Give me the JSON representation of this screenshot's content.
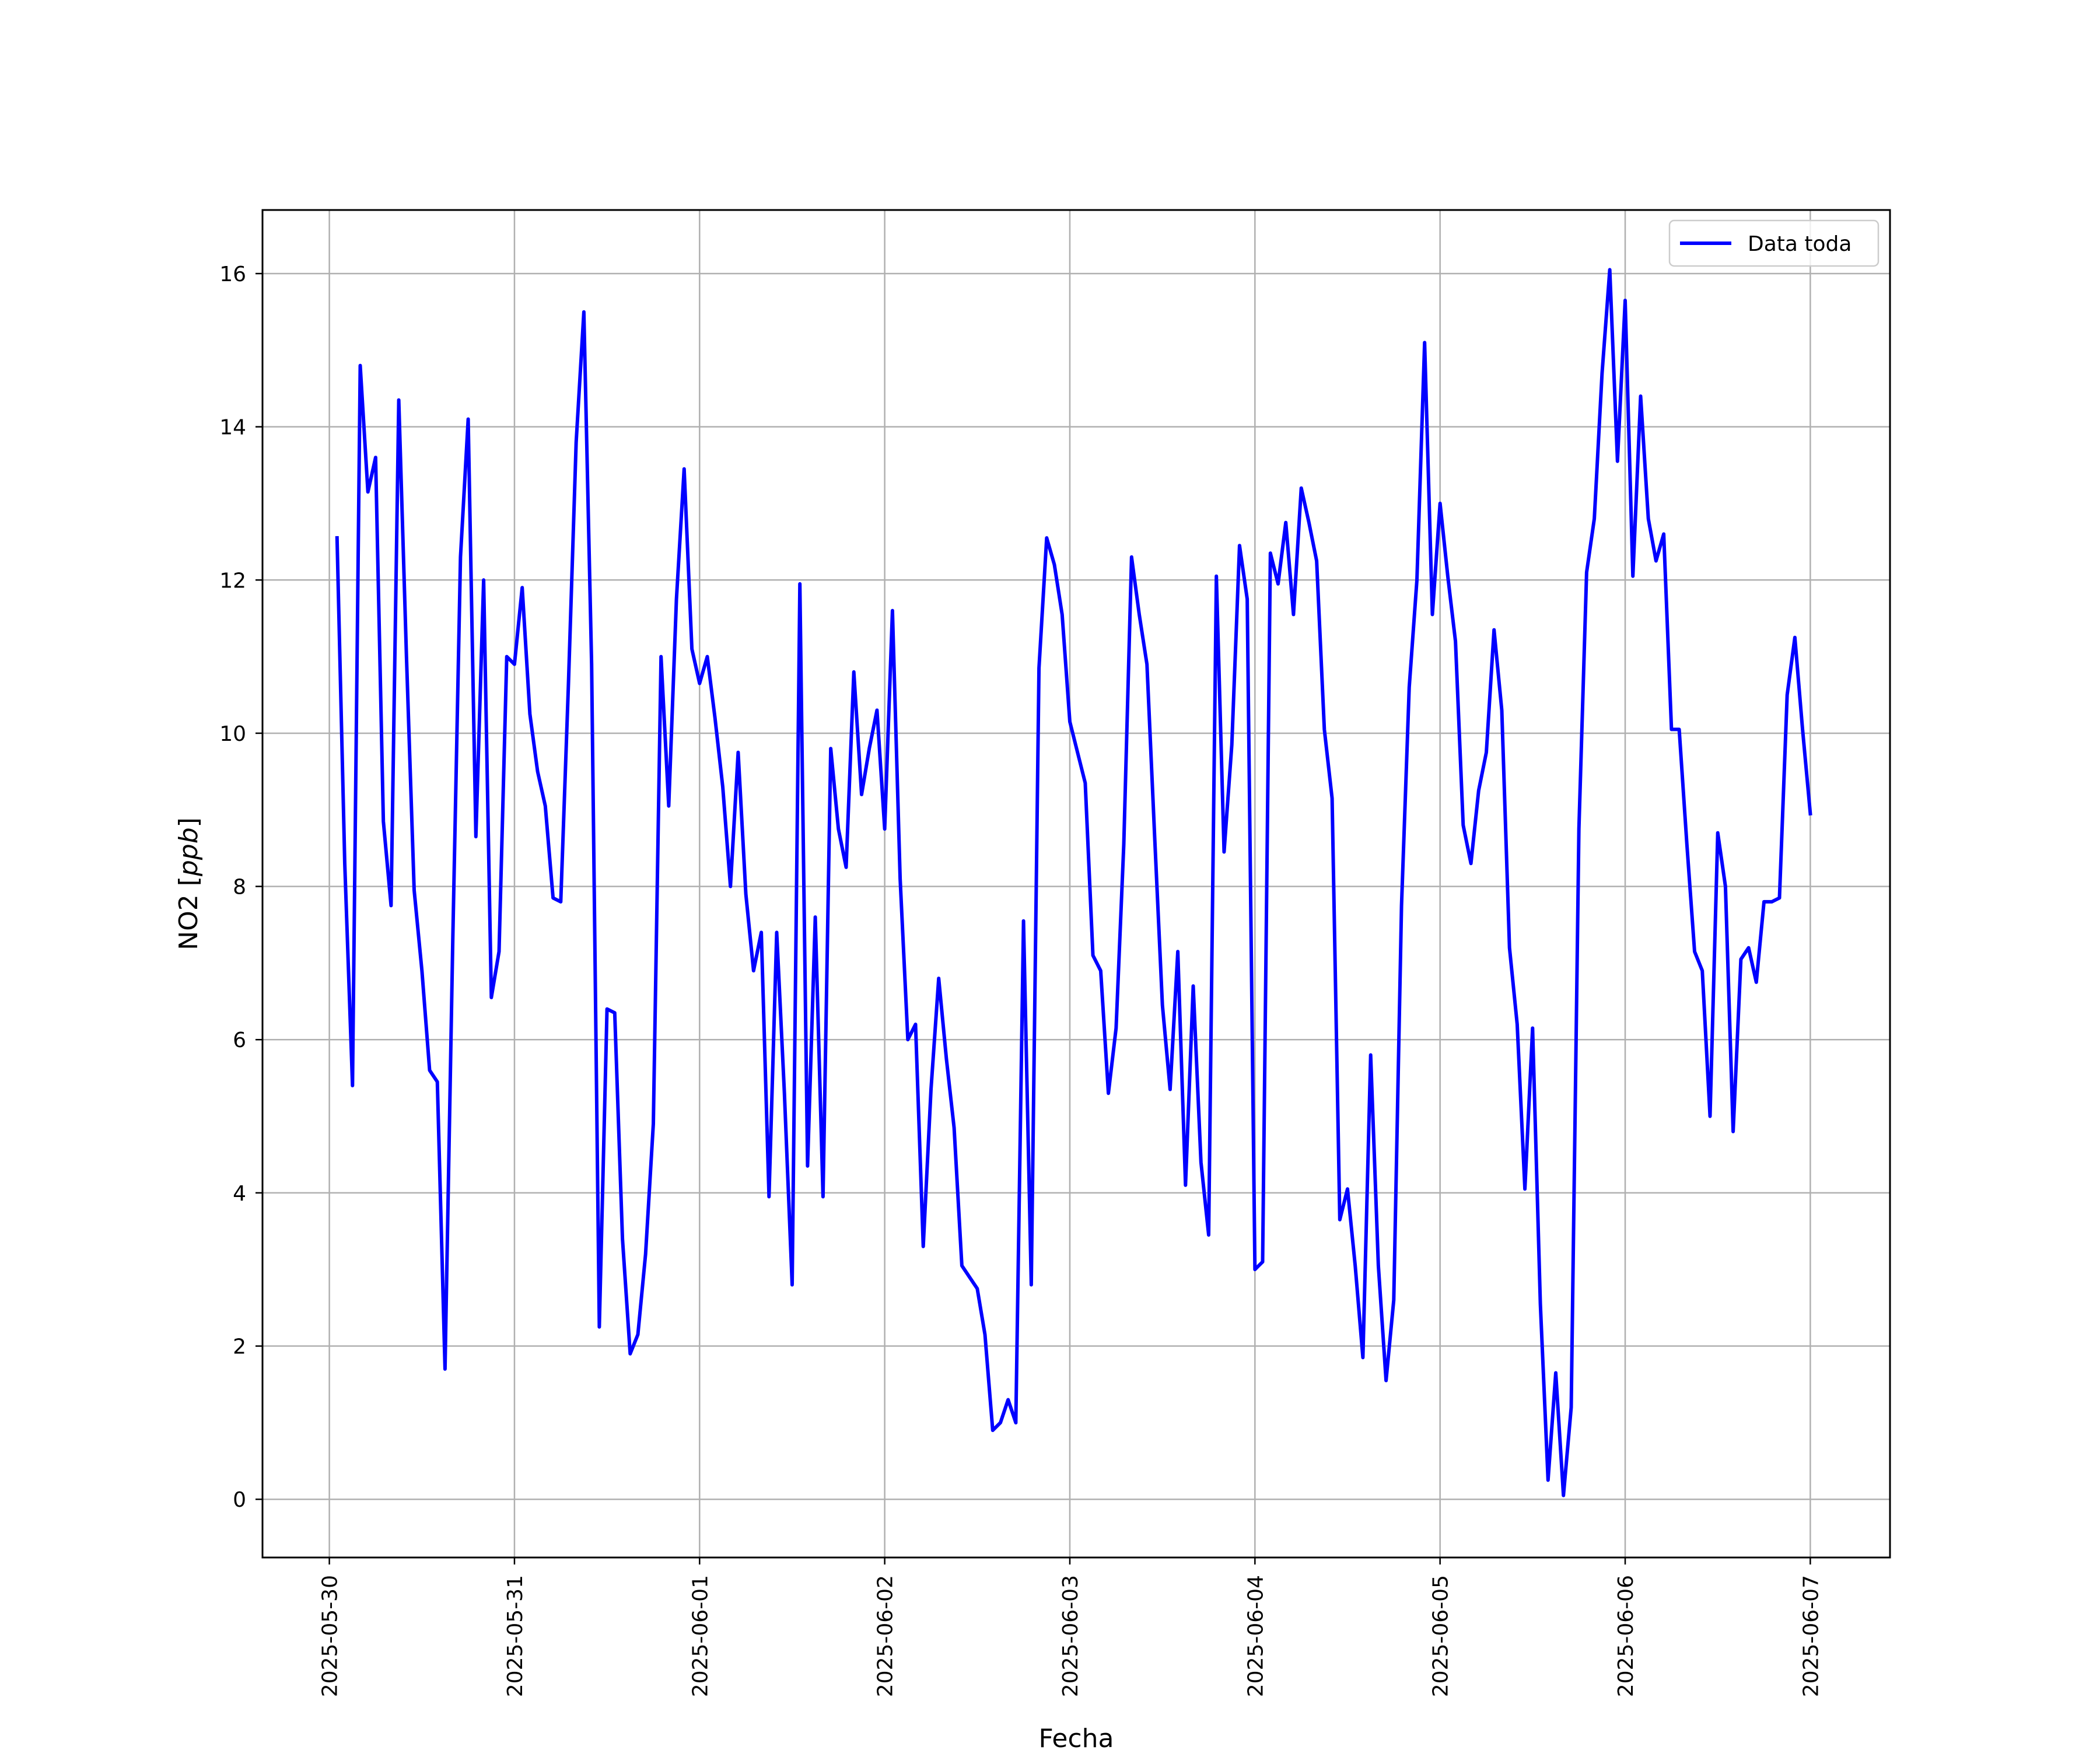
{
  "chart_data": {
    "type": "line",
    "xlabel": "Fecha",
    "ylabel_prefix": "NO2 [",
    "ylabel_unit": "ppb",
    "ylabel_suffix": "]",
    "x_tick_labels": [
      "2025-05-30",
      "2025-05-31",
      "2025-06-01",
      "2025-06-02",
      "2025-06-03",
      "2025-06-04",
      "2025-06-05",
      "2025-06-06",
      "2025-06-07"
    ],
    "y_ticks": [
      0,
      2,
      4,
      6,
      8,
      10,
      12,
      14,
      16
    ],
    "xlim": [
      "2025-05-29T15:20",
      "2025-06-07T10:20"
    ],
    "ylim": [
      -0.76,
      16.83
    ],
    "grid": true,
    "legend_position": "upper right",
    "colors": {
      "series": "#0000ff",
      "grid": "#b0b0b0",
      "axes": "#000000"
    },
    "series": [
      {
        "name": "Data toda",
        "x": [
          "2025-05-30T01:00",
          "2025-05-30T02:00",
          "2025-05-30T03:00",
          "2025-05-30T04:00",
          "2025-05-30T05:00",
          "2025-05-30T06:00",
          "2025-05-30T07:00",
          "2025-05-30T08:00",
          "2025-05-30T09:00",
          "2025-05-30T10:00",
          "2025-05-30T11:00",
          "2025-05-30T12:00",
          "2025-05-30T13:00",
          "2025-05-30T14:00",
          "2025-05-30T15:00",
          "2025-05-30T16:00",
          "2025-05-30T17:00",
          "2025-05-30T18:00",
          "2025-05-30T19:00",
          "2025-05-30T20:00",
          "2025-05-30T21:00",
          "2025-05-30T22:00",
          "2025-05-30T23:00",
          "2025-05-31T00:00",
          "2025-05-31T01:00",
          "2025-05-31T02:00",
          "2025-05-31T03:00",
          "2025-05-31T04:00",
          "2025-05-31T05:00",
          "2025-05-31T06:00",
          "2025-05-31T07:00",
          "2025-05-31T08:00",
          "2025-05-31T09:00",
          "2025-05-31T10:00",
          "2025-05-31T11:00",
          "2025-05-31T12:00",
          "2025-05-31T13:00",
          "2025-05-31T14:00",
          "2025-05-31T15:00",
          "2025-05-31T16:00",
          "2025-05-31T17:00",
          "2025-05-31T18:00",
          "2025-05-31T19:00",
          "2025-05-31T20:00",
          "2025-05-31T21:00",
          "2025-05-31T22:00",
          "2025-05-31T23:00",
          "2025-06-01T00:00",
          "2025-06-01T01:00",
          "2025-06-01T02:00",
          "2025-06-01T03:00",
          "2025-06-01T04:00",
          "2025-06-01T05:00",
          "2025-06-01T06:00",
          "2025-06-01T07:00",
          "2025-06-01T08:00",
          "2025-06-01T09:00",
          "2025-06-01T10:00",
          "2025-06-01T11:00",
          "2025-06-01T12:00",
          "2025-06-01T13:00",
          "2025-06-01T14:00",
          "2025-06-01T15:00",
          "2025-06-01T16:00",
          "2025-06-01T17:00",
          "2025-06-01T18:00",
          "2025-06-01T19:00",
          "2025-06-01T20:00",
          "2025-06-01T21:00",
          "2025-06-01T22:00",
          "2025-06-01T23:00",
          "2025-06-02T00:00",
          "2025-06-02T01:00",
          "2025-06-02T02:00",
          "2025-06-02T03:00",
          "2025-06-02T04:00",
          "2025-06-02T05:00",
          "2025-06-02T06:00",
          "2025-06-02T07:00",
          "2025-06-02T08:00",
          "2025-06-02T09:00",
          "2025-06-02T10:00",
          "2025-06-02T11:00",
          "2025-06-02T12:00",
          "2025-06-02T13:00",
          "2025-06-02T14:00",
          "2025-06-02T15:00",
          "2025-06-02T16:00",
          "2025-06-02T17:00",
          "2025-06-02T18:00",
          "2025-06-02T19:00",
          "2025-06-02T20:00",
          "2025-06-02T21:00",
          "2025-06-02T22:00",
          "2025-06-02T23:00",
          "2025-06-03T00:00",
          "2025-06-03T01:00",
          "2025-06-03T02:00",
          "2025-06-03T03:00",
          "2025-06-03T04:00",
          "2025-06-03T05:00",
          "2025-06-03T06:00",
          "2025-06-03T07:00",
          "2025-06-03T08:00",
          "2025-06-03T09:00",
          "2025-06-03T10:00",
          "2025-06-03T11:00",
          "2025-06-03T12:00",
          "2025-06-03T13:00",
          "2025-06-03T14:00",
          "2025-06-03T15:00",
          "2025-06-03T16:00",
          "2025-06-03T17:00",
          "2025-06-03T18:00",
          "2025-06-03T19:00",
          "2025-06-03T20:00",
          "2025-06-03T21:00",
          "2025-06-03T22:00",
          "2025-06-03T23:00",
          "2025-06-04T00:00",
          "2025-06-04T01:00",
          "2025-06-04T02:00",
          "2025-06-04T03:00",
          "2025-06-04T04:00",
          "2025-06-04T05:00",
          "2025-06-04T06:00",
          "2025-06-04T07:00",
          "2025-06-04T08:00",
          "2025-06-04T09:00",
          "2025-06-04T10:00",
          "2025-06-04T11:00",
          "2025-06-04T12:00",
          "2025-06-04T13:00",
          "2025-06-04T14:00",
          "2025-06-04T15:00",
          "2025-06-04T16:00",
          "2025-06-04T17:00",
          "2025-06-04T18:00",
          "2025-06-04T19:00",
          "2025-06-04T20:00",
          "2025-06-04T21:00",
          "2025-06-04T22:00",
          "2025-06-04T23:00",
          "2025-06-05T00:00",
          "2025-06-05T01:00",
          "2025-06-05T02:00",
          "2025-06-05T03:00",
          "2025-06-05T04:00",
          "2025-06-05T05:00",
          "2025-06-05T06:00",
          "2025-06-05T07:00",
          "2025-06-05T08:00",
          "2025-06-05T09:00",
          "2025-06-05T10:00",
          "2025-06-05T11:00",
          "2025-06-05T12:00",
          "2025-06-05T13:00",
          "2025-06-05T14:00",
          "2025-06-05T15:00",
          "2025-06-05T16:00",
          "2025-06-05T17:00",
          "2025-06-05T18:00",
          "2025-06-05T19:00",
          "2025-06-05T20:00",
          "2025-06-05T21:00",
          "2025-06-05T22:00",
          "2025-06-05T23:00",
          "2025-06-06T00:00",
          "2025-06-06T01:00",
          "2025-06-06T02:00",
          "2025-06-06T03:00",
          "2025-06-06T04:00",
          "2025-06-06T05:00",
          "2025-06-06T06:00",
          "2025-06-06T07:00",
          "2025-06-06T08:00",
          "2025-06-06T09:00",
          "2025-06-06T10:00",
          "2025-06-06T11:00",
          "2025-06-06T12:00",
          "2025-06-06T13:00",
          "2025-06-06T14:00",
          "2025-06-06T15:00",
          "2025-06-06T16:00",
          "2025-06-06T17:00",
          "2025-06-06T18:00",
          "2025-06-06T19:00",
          "2025-06-06T20:00",
          "2025-06-06T21:00",
          "2025-06-06T22:00",
          "2025-06-06T23:00",
          "2025-06-07T00:00"
        ],
        "y": [
          12.55,
          8.3,
          5.4,
          14.8,
          13.15,
          13.6,
          8.85,
          7.75,
          14.35,
          11.0,
          7.95,
          6.9,
          5.6,
          5.45,
          1.7,
          7.3,
          12.3,
          14.1,
          8.65,
          12.0,
          6.55,
          7.15,
          11.0,
          10.9,
          11.9,
          10.25,
          9.5,
          9.05,
          7.85,
          7.8,
          10.65,
          13.8,
          15.5,
          10.9,
          2.25,
          6.4,
          6.35,
          3.4,
          1.9,
          2.15,
          3.2,
          4.9,
          11.0,
          9.05,
          11.75,
          13.45,
          11.1,
          10.65,
          11.0,
          10.2,
          9.3,
          8.0,
          9.75,
          7.9,
          6.9,
          7.4,
          3.95,
          7.4,
          5.3,
          2.8,
          11.95,
          4.35,
          7.6,
          3.95,
          9.8,
          8.75,
          8.25,
          10.8,
          9.2,
          9.8,
          10.3,
          8.75,
          11.6,
          8.1,
          6.0,
          6.2,
          3.3,
          5.35,
          6.8,
          5.75,
          4.85,
          3.05,
          2.9,
          2.75,
          2.15,
          0.9,
          1.0,
          1.3,
          1.0,
          7.55,
          2.8,
          10.85,
          12.55,
          12.2,
          11.55,
          10.15,
          9.75,
          9.35,
          7.1,
          6.9,
          5.3,
          6.15,
          8.55,
          12.3,
          11.55,
          10.9,
          8.65,
          6.45,
          5.35,
          7.15,
          4.1,
          6.7,
          4.4,
          3.45,
          12.05,
          8.45,
          9.85,
          12.45,
          11.75,
          3.0,
          3.1,
          12.35,
          11.95,
          12.75,
          11.55,
          13.2,
          12.75,
          12.25,
          10.05,
          9.15,
          3.65,
          4.05,
          3.05,
          1.85,
          5.8,
          3.05,
          1.55,
          2.6,
          7.75,
          10.6,
          12.0,
          15.1,
          11.55,
          13.0,
          12.05,
          11.2,
          8.8,
          8.3,
          9.25,
          9.75,
          11.35,
          10.3,
          7.2,
          6.2,
          4.05,
          6.15,
          2.55,
          0.25,
          1.65,
          0.05,
          1.2,
          8.75,
          12.1,
          12.8,
          14.7,
          16.05,
          13.55,
          15.65,
          12.05,
          14.4,
          12.8,
          12.25,
          12.6,
          10.05,
          10.05,
          8.55,
          7.15,
          6.9,
          5.0,
          8.7,
          8.0,
          4.8,
          7.05,
          7.2,
          6.75,
          7.8,
          7.8,
          7.85,
          10.5,
          11.25,
          10.05,
          8.95
        ]
      }
    ]
  }
}
